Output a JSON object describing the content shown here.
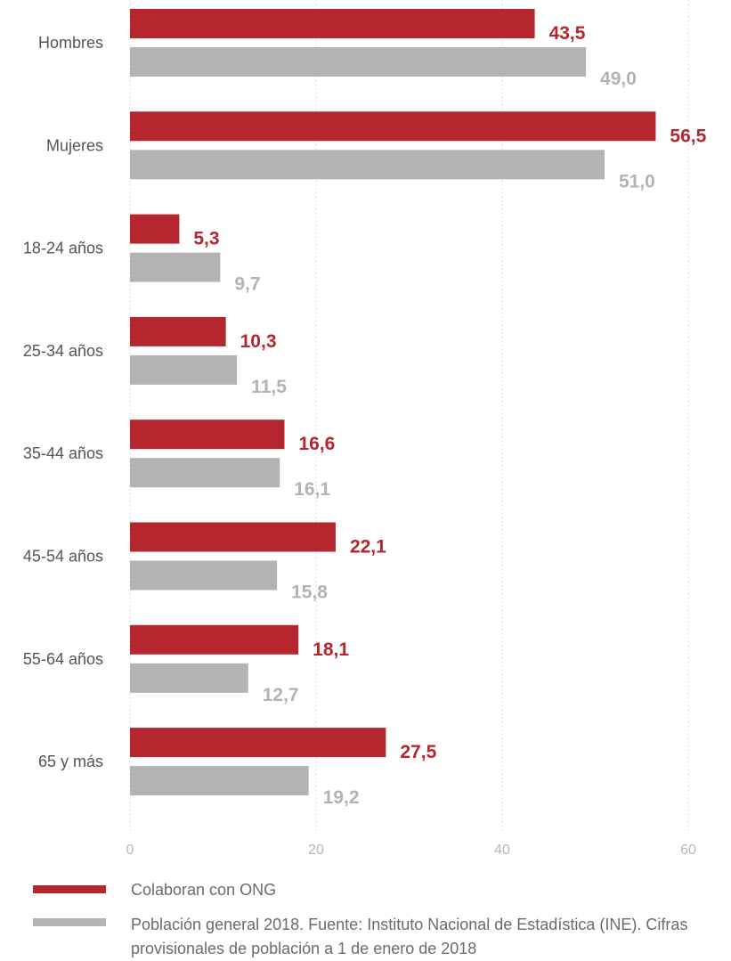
{
  "chart_data": {
    "type": "bar",
    "orientation": "horizontal",
    "categories": [
      "Hombres",
      "Mujeres",
      "18-24 años",
      "25-34 años",
      "35-44 años",
      "45-54 años",
      "55-64 años",
      "65 y más"
    ],
    "series": [
      {
        "name": "Colaboran con ONG",
        "color": "#b5262e",
        "values": [
          43.5,
          56.5,
          5.3,
          10.3,
          16.6,
          22.1,
          18.1,
          27.5
        ],
        "labels": [
          "43,5",
          "56,5",
          "5,3",
          "10,3",
          "16,6",
          "22,1",
          "18,1",
          "27,5"
        ]
      },
      {
        "name": "Población general 2018. Fuente: Instituto Nacional de Estadística (INE). Cifras provisionales de población a 1 de enero de 2018",
        "color": "#b3b3b3",
        "values": [
          49.0,
          51.0,
          9.7,
          11.5,
          16.1,
          15.8,
          12.7,
          19.2
        ],
        "labels": [
          "49,0",
          "51,0",
          "9,7",
          "11,5",
          "16,1",
          "15,8",
          "12,7",
          "19,2"
        ]
      }
    ],
    "xlim": [
      0,
      60
    ],
    "xticks": [
      0,
      20,
      40,
      60
    ],
    "xtick_labels": [
      "0",
      "20",
      "40",
      "60"
    ],
    "grid": "vertical dotted",
    "legend_position": "bottom"
  },
  "legend": {
    "items": [
      {
        "label": "Colaboran con ONG",
        "color": "#b5262e"
      },
      {
        "label": "Población general 2018. Fuente: Instituto Nacional de Estadística (INE). Cifras provisionales de población a 1 de enero de 2018",
        "color": "#b3b3b3"
      }
    ]
  }
}
